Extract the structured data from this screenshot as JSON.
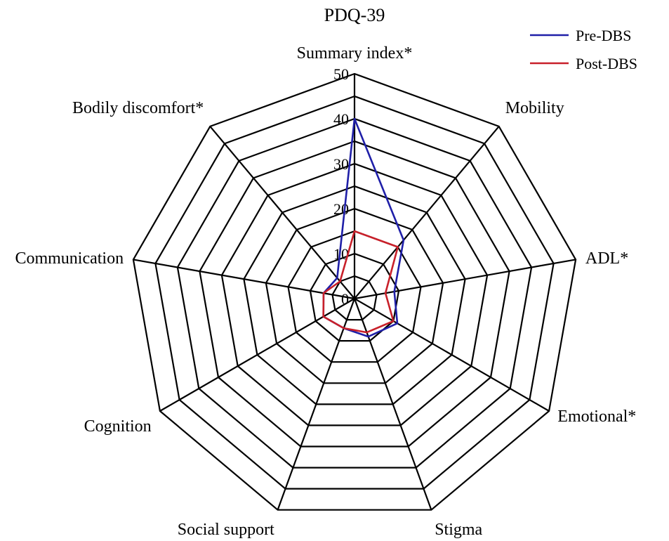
{
  "chart_data": {
    "type": "radar",
    "title": "PDQ-39",
    "categories": [
      "Summary index*",
      "Mobility",
      "ADL*",
      "Emotional*",
      "Stigma",
      "Social support",
      "Cognition",
      "Communication",
      "Bodily discomfort*"
    ],
    "r_ticks": [
      "0",
      "10",
      "20",
      "30",
      "40",
      "50"
    ],
    "r_range": [
      0,
      50
    ],
    "grid": true,
    "legend_position": "top-right",
    "series": [
      {
        "name": "Pre-DBS",
        "color": "#1f1fa8",
        "values": [
          40,
          17,
          9,
          11,
          9,
          7,
          8,
          7,
          6
        ]
      },
      {
        "name": "Post-DBS",
        "color": "#c8202a",
        "values": [
          15,
          15,
          7,
          10,
          8,
          7,
          8,
          7,
          5
        ]
      }
    ]
  }
}
